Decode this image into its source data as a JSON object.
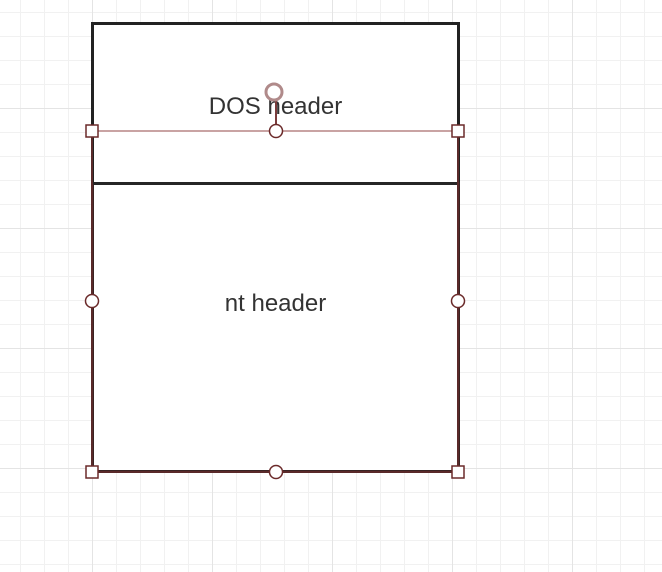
{
  "diagram": {
    "shapes": [
      {
        "id": "dos",
        "label": "DOS header"
      },
      {
        "id": "nt",
        "label": "nt header"
      }
    ],
    "selection": {
      "selected_shape": "nt",
      "edge_color": "#6b2a2a",
      "guide_color": "#c9a3a3"
    }
  }
}
